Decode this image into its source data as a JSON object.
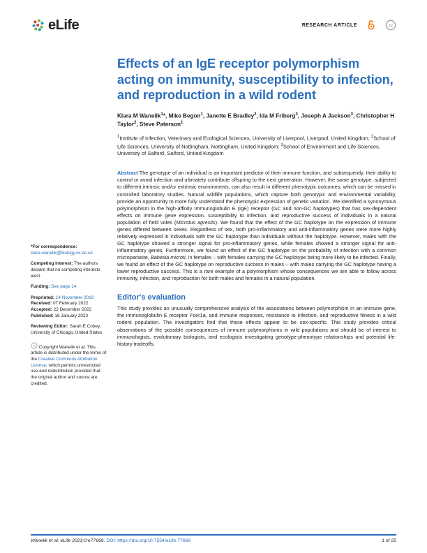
{
  "journal": {
    "name": "eLife"
  },
  "header": {
    "article_type": "RESEARCH ARTICLE"
  },
  "title": "Effects of an IgE receptor polymorphism acting on immunity, susceptibility to infection, and reproduction in a wild rodent",
  "authors_html": "Klara M Wanelik<sup>1</sup>*, Mike Begon<sup>1</sup>, Janette E Bradley<sup>2</sup>, Ida M Friberg<sup>3</sup>, Joseph A Jackson<sup>3</sup>, Christopher H Taylor<sup>2</sup>, Steve Paterson<sup>1</sup>",
  "affiliations_html": "<sup>1</sup>Institute of Infection, Veterinary and Ecological Sciences, University of Liverpool, Liverpool, United Kingdom; <sup>2</sup>School of Life Sciences, University of Nottingham, Nottingham, United Kingdom; <sup>3</sup>School of Environment and Life Sciences, University of Salford, Salford, United Kingdom",
  "abstract": {
    "heading": "Abstract",
    "body": "The genotype of an individual is an important predictor of their immune function, and subsequently, their ability to control or avoid infection and ultimately contribute offspring to the next generation. However, the same genotype, subjected to different intrinsic and/or extrinsic environments, can also result in different phenotypic outcomes, which can be missed in controlled laboratory studies. Natural wildlife populations, which capture both genotypic and environmental variability, provide an opportunity to more fully understand the phenotypic expression of genetic variation. We identified a synonymous polymorphism in the high-affinity Immunoglobulin E (IgE) receptor (GC and non-GC haplotypes) that has sex-dependent effects on immune gene expression, susceptibility to infection, and reproductive success of individuals in a natural population of field voles (Microtus agrestis). We found that the effect of the GC haplotype on the expression of immune genes differed between sexes. Regardless of sex, both pro-inflammatory and anti-inflammatory genes were more highly relatively expressed in individuals with the GC haplotype than individuals without the haplotype. However, males with the GC haplotype showed a stronger signal for pro-inflammatory genes, while females showed a stronger signal for anti-inflammatory genes. Furthermore, we found an effect of the GC haplotype on the probability of infection with a common microparasite, Babesia microti, in females – with females carrying the GC haplotype being more likely to be infected. Finally, we found an effect of the GC haplotype on reproductive success in males – with males carrying the GC haplotype having a lower reproductive success. This is a rare example of a polymorphism whose consequences we are able to follow across immunity, infection, and reproduction for both males and females in a natural population."
  },
  "evaluation": {
    "heading": "Editor's evaluation",
    "body": "This study provides an unusually comprehensive analysis of the associations between polymorphism in an immune gene, the immunoglobulin E receptor Fcer1a, and immune responses, resistance to infection, and reproductive fitness in a wild rodent population. The investigators find that these effects appear to be sex-specific. This study provides critical observations of the possible consequences of immune polymorphisms in wild populations and should be of interest to immunologists, evolutionary biologists, and ecologists investigating genotype-phenotype relationships and potential life-history tradeoffs."
  },
  "sidebar": {
    "correspondence_label": "*For correspondence:",
    "correspondence_email": "klara.wanelik@biology.ox.ac.uk",
    "competing_label": "Competing interest:",
    "competing_text": " The authors declare that no competing interests exist.",
    "funding_label": "Funding:",
    "funding_link": " See page 14",
    "preprinted_label": "Preprinted:",
    "preprinted_value": " 14 November 2019",
    "received_label": "Received:",
    "received_value": " 07 February 2022",
    "accepted_label": "Accepted:",
    "accepted_value": " 22 December 2022",
    "published_label": "Published:",
    "published_value": " 16 January 2023",
    "reviewing_label": "Reviewing Editor:",
    "reviewing_text": " Sarah E Cobey, University of Chicago, United States",
    "copyright_text": "Copyright Wanelik et al. This article is distributed under the terms of the ",
    "license_link": "Creative Commons Attribution License",
    "copyright_tail": ", which permits unrestricted use and redistribution provided that the original author and source are credited."
  },
  "footer": {
    "citation": "Wanelik et al. eLife 2023;0:e77666.",
    "doi_label": "DOI: https://doi.org/10.7554/eLife.77666",
    "page": "1 of 25"
  },
  "colors": {
    "brand_blue": "#2a6ebb",
    "text": "#222222",
    "logo_green": "#7cb342",
    "logo_blue": "#2196c4",
    "logo_red": "#e53935",
    "oa_orange": "#f68212"
  }
}
